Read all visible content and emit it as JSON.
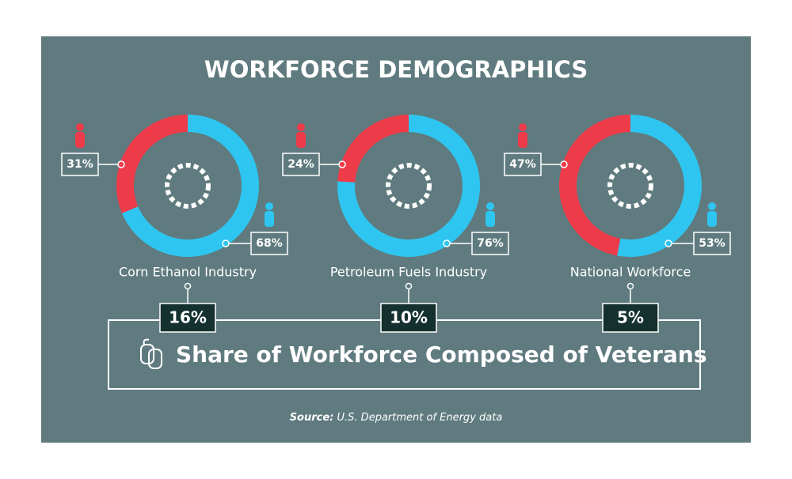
{
  "title": "WORKFORCE DEMOGRAPHICS",
  "chart_data": [
    {
      "type": "pie",
      "title": "Corn Ethanol Industry",
      "values": [
        31,
        68
      ],
      "value_labels": [
        "31%",
        "68%"
      ],
      "colors": [
        "#ee3b4a",
        "#2ec6f0"
      ]
    },
    {
      "type": "pie",
      "title": "Petroleum Fuels Industry",
      "values": [
        24,
        76
      ],
      "value_labels": [
        "24%",
        "76%"
      ],
      "colors": [
        "#ee3b4a",
        "#2ec6f0"
      ]
    },
    {
      "type": "pie",
      "title": "National Workforce",
      "values": [
        47,
        53
      ],
      "value_labels": [
        "47%",
        "53%"
      ],
      "colors": [
        "#ee3b4a",
        "#2ec6f0"
      ]
    }
  ],
  "veterans": {
    "title": "Share of Workforce Composed of Veterans",
    "values": [
      16,
      10,
      5
    ],
    "value_labels": [
      "16%",
      "10%",
      "5%"
    ]
  },
  "source": {
    "label": "Source:",
    "text": "U.S. Department of Energy data"
  }
}
